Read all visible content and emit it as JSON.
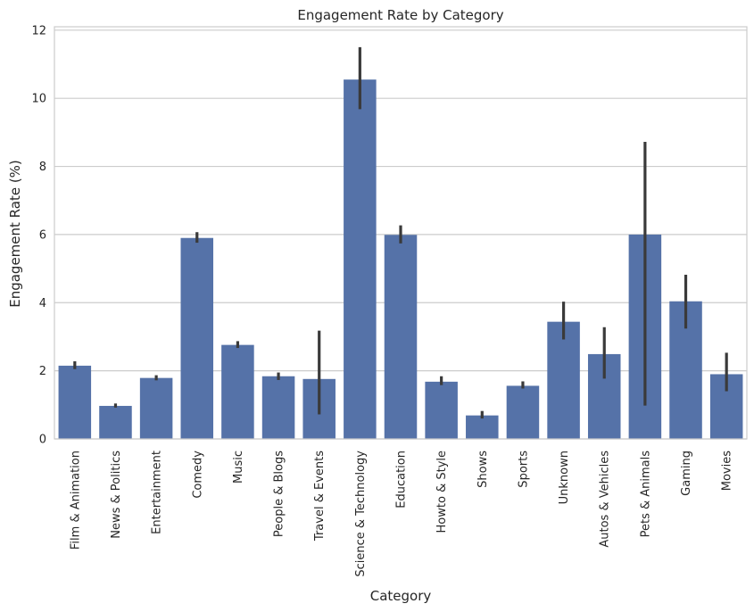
{
  "chart_data": {
    "type": "bar",
    "title": "Engagement Rate by Category",
    "xlabel": "Category",
    "ylabel": "Engagement Rate (%)",
    "ylim": [
      0,
      12.1
    ],
    "yticks": [
      0,
      2,
      4,
      6,
      8,
      10,
      12
    ],
    "grid": "horizontal",
    "bar_color": "#5572a8",
    "error_bar_color": "#3a3a3a",
    "grid_color": "#cccccc",
    "categories": [
      "Film & Animation",
      "News & Politics",
      "Entertainment",
      "Comedy",
      "Music",
      "People & Blogs",
      "Travel & Events",
      "Science & Technology",
      "Education",
      "Howto & Style",
      "Shows",
      "Sports",
      "Unknown",
      "Autos & Vehicles",
      "Pets & Animals",
      "Gaming",
      "Movies"
    ],
    "values": [
      2.15,
      0.97,
      1.79,
      5.9,
      2.76,
      1.84,
      1.76,
      10.55,
      5.99,
      1.68,
      0.69,
      1.56,
      3.44,
      2.49,
      6.0,
      4.04,
      1.9
    ],
    "error_low": [
      2.05,
      0.92,
      1.72,
      5.76,
      2.67,
      1.73,
      0.72,
      9.68,
      5.74,
      1.58,
      0.6,
      1.48,
      2.92,
      1.77,
      0.98,
      3.24,
      1.4
    ],
    "error_high": [
      2.28,
      1.04,
      1.87,
      6.07,
      2.87,
      1.95,
      3.18,
      11.5,
      6.27,
      1.84,
      0.82,
      1.69,
      4.03,
      3.28,
      8.72,
      4.82,
      2.53
    ]
  }
}
